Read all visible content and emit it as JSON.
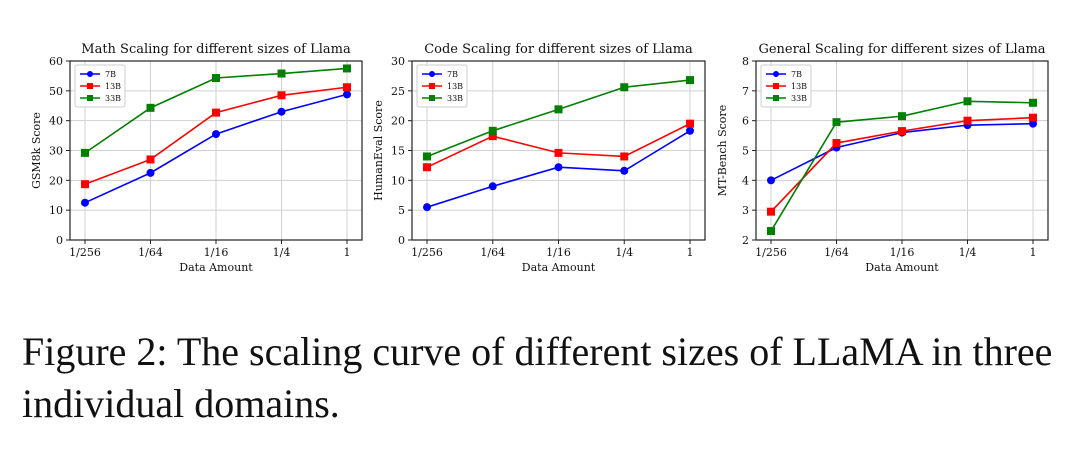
{
  "chart_data": [
    {
      "type": "line",
      "title": "Math Scaling for different sizes of Llama",
      "xlabel": "Data Amount",
      "ylabel": "GSM8k Score",
      "categories": [
        "1/256",
        "1/64",
        "1/16",
        "1/4",
        "1"
      ],
      "ylim": [
        0,
        60
      ],
      "yticks": [
        0,
        10,
        20,
        30,
        40,
        50,
        60
      ],
      "grid": true,
      "legend": "top-left",
      "series": [
        {
          "name": "7B",
          "color": "#0000ff",
          "marker": "circle",
          "values": [
            12.5,
            22.5,
            35.5,
            43.0,
            48.8
          ]
        },
        {
          "name": "13B",
          "color": "#ff0000",
          "marker": "square",
          "values": [
            18.7,
            27.0,
            42.7,
            48.5,
            51.2
          ]
        },
        {
          "name": "33B",
          "color": "#008000",
          "marker": "square",
          "values": [
            29.2,
            44.3,
            54.3,
            55.8,
            57.5
          ]
        }
      ]
    },
    {
      "type": "line",
      "title": "Code Scaling for different sizes of Llama",
      "xlabel": "Data Amount",
      "ylabel": "HumanEval Score",
      "categories": [
        "1/256",
        "1/64",
        "1/16",
        "1/4",
        "1"
      ],
      "ylim": [
        0,
        30
      ],
      "yticks": [
        0,
        5,
        10,
        15,
        20,
        25,
        30
      ],
      "grid": true,
      "legend": "top-left",
      "series": [
        {
          "name": "7B",
          "color": "#0000ff",
          "marker": "circle",
          "values": [
            5.5,
            9.0,
            12.2,
            11.6,
            18.3
          ]
        },
        {
          "name": "13B",
          "color": "#ff0000",
          "marker": "square",
          "values": [
            12.2,
            17.4,
            14.6,
            14.0,
            19.5
          ]
        },
        {
          "name": "33B",
          "color": "#008000",
          "marker": "square",
          "values": [
            14.0,
            18.3,
            21.9,
            25.6,
            26.8
          ]
        }
      ]
    },
    {
      "type": "line",
      "title": "General Scaling for different sizes of Llama",
      "xlabel": "Data Amount",
      "ylabel": "MT-Bench Score",
      "categories": [
        "1/256",
        "1/64",
        "1/16",
        "1/4",
        "1"
      ],
      "ylim": [
        2,
        8
      ],
      "yticks": [
        2,
        3,
        4,
        5,
        6,
        7,
        8
      ],
      "grid": true,
      "legend": "top-left",
      "series": [
        {
          "name": "7B",
          "color": "#0000ff",
          "marker": "circle",
          "values": [
            4.0,
            5.1,
            5.6,
            5.85,
            5.9
          ]
        },
        {
          "name": "13B",
          "color": "#ff0000",
          "marker": "square",
          "values": [
            2.95,
            5.25,
            5.65,
            6.0,
            6.1
          ]
        },
        {
          "name": "33B",
          "color": "#008000",
          "marker": "square",
          "values": [
            2.3,
            5.95,
            6.15,
            6.65,
            6.6
          ]
        }
      ]
    }
  ],
  "caption": "Figure 2: The scaling curve of different sizes of LLaMA in three individual domains."
}
